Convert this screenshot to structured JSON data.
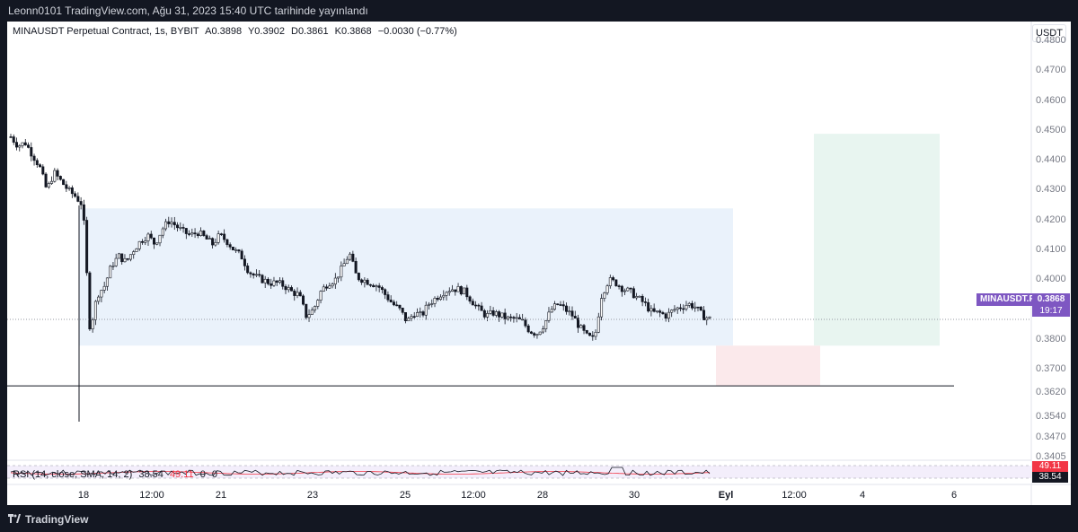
{
  "header": {
    "publish_text": "Leonn0101 TradingView.com, Ağu 31, 2023 15:40 UTC tarihinde yayınlandı"
  },
  "legend": {
    "symbol": "MINAUSDT Perpetual Contract, 1s, BYBIT",
    "open": "A0.3898",
    "high": "Y0.3902",
    "low": "D0.3861",
    "close": "K0.3868",
    "change": "−0.0030 (−0.77%)"
  },
  "currency_button": "USDT",
  "price_axis": [
    "0.4800",
    "0.4700",
    "0.4600",
    "0.4500",
    "0.4400",
    "0.4300",
    "0.4200",
    "0.4100",
    "0.4000",
    "0.3900",
    "0.3800",
    "0.3700",
    "0.3620",
    "0.3540",
    "0.3470",
    "0.3405"
  ],
  "last_price": {
    "symbol_tag": "MINAUSDT.P",
    "price": "0.3868",
    "countdown": "19:17"
  },
  "rsi": {
    "label": "RSI (14, close, SMA, 14, 2)",
    "value": "38.54",
    "value2": "49.11",
    "extra1": "0",
    "extra2": "0",
    "tag_top": "49.11",
    "tag_bottom": "38.54"
  },
  "time_axis": [
    {
      "label": "18",
      "bold": false
    },
    {
      "label": "12:00",
      "bold": false
    },
    {
      "label": "21",
      "bold": false
    },
    {
      "label": "23",
      "bold": false
    },
    {
      "label": "25",
      "bold": false
    },
    {
      "label": "12:00",
      "bold": false
    },
    {
      "label": "28",
      "bold": false
    },
    {
      "label": "30",
      "bold": false
    },
    {
      "label": "Eyl",
      "bold": true
    },
    {
      "label": "12:00",
      "bold": false
    },
    {
      "label": "4",
      "bold": false
    },
    {
      "label": "6",
      "bold": false
    }
  ],
  "footer": {
    "brand": "TradingView"
  },
  "colors": {
    "background_frame": "#131722",
    "chart_bg": "#ffffff",
    "candle_up": "#ffffff",
    "candle_down": "#131722",
    "range_box": "#eaf2fb",
    "target_box": "#e8f5f0",
    "stop_box": "#fbe9eb",
    "accent": "#7e57c2",
    "rsi_line": "#131722",
    "rsi_ma": "#f23645"
  },
  "chart_data": {
    "type": "candlestick",
    "ylim": [
      0.3405,
      0.48
    ],
    "support_level": 0.3645,
    "last_price": 0.3868,
    "range_box": {
      "top": 0.424,
      "bottom": 0.378
    },
    "target_box": {
      "top": 0.449,
      "bottom": 0.378
    },
    "stop_box": {
      "top": 0.378,
      "bottom": 0.3645
    },
    "close_path": [
      0.448,
      0.445,
      0.446,
      0.442,
      0.438,
      0.43,
      0.436,
      0.433,
      0.43,
      0.428,
      0.425,
      0.383,
      0.395,
      0.398,
      0.405,
      0.408,
      0.406,
      0.41,
      0.413,
      0.415,
      0.412,
      0.417,
      0.42,
      0.418,
      0.416,
      0.415,
      0.416,
      0.414,
      0.412,
      0.415,
      0.413,
      0.41,
      0.408,
      0.403,
      0.401,
      0.4,
      0.399,
      0.399,
      0.398,
      0.396,
      0.395,
      0.388,
      0.39,
      0.396,
      0.399,
      0.4,
      0.404,
      0.409,
      0.401,
      0.4,
      0.399,
      0.398,
      0.395,
      0.392,
      0.39,
      0.386,
      0.389,
      0.388,
      0.392,
      0.394,
      0.396,
      0.397,
      0.397,
      0.396,
      0.393,
      0.39,
      0.388,
      0.389,
      0.388,
      0.387,
      0.387,
      0.386,
      0.383,
      0.382,
      0.385,
      0.39,
      0.392,
      0.39,
      0.388,
      0.384,
      0.381,
      0.38,
      0.395,
      0.4,
      0.399,
      0.397,
      0.396,
      0.394,
      0.392,
      0.389,
      0.389,
      0.388,
      0.39,
      0.391,
      0.392,
      0.391,
      0.388,
      0.387
    ]
  }
}
